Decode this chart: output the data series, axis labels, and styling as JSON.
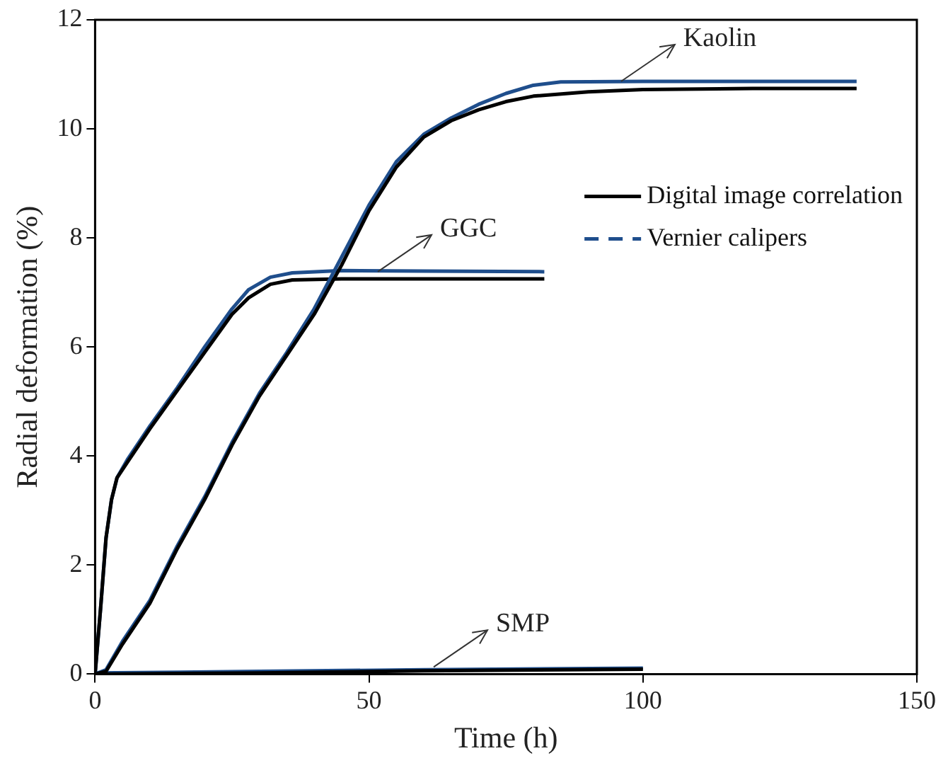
{
  "chart_data": {
    "type": "line",
    "xlabel": "Time (h)",
    "ylabel": "Radial deformation (%)",
    "xlim": [
      0,
      150
    ],
    "xticks": [
      0,
      50,
      100,
      150
    ],
    "ylim": [
      0,
      12
    ],
    "yticks": [
      0,
      2,
      4,
      6,
      8,
      10,
      12
    ],
    "legend": "right",
    "series": [
      {
        "name": "Digital image correlation",
        "color": "#000000",
        "x": [
          0,
          2,
          5,
          10,
          15,
          20,
          25,
          30,
          35,
          40,
          45,
          50,
          55,
          60,
          65,
          70,
          75,
          80,
          90,
          100,
          120,
          139
        ],
        "values": [
          0,
          0.05,
          0.55,
          1.3,
          2.3,
          3.2,
          4.2,
          5.1,
          5.85,
          6.6,
          7.5,
          8.5,
          9.3,
          9.85,
          10.15,
          10.35,
          10.5,
          10.6,
          10.68,
          10.72,
          10.74,
          10.74
        ]
      },
      {
        "name": "Vernier calipers",
        "color": "#1f4e8c",
        "x": [
          0,
          2,
          5,
          10,
          15,
          20,
          25,
          30,
          35,
          40,
          45,
          50,
          55,
          60,
          65,
          70,
          75,
          80,
          85,
          100,
          139
        ],
        "values": [
          0,
          0.08,
          0.6,
          1.35,
          2.35,
          3.25,
          4.25,
          5.15,
          5.9,
          6.7,
          7.65,
          8.6,
          9.4,
          9.9,
          10.2,
          10.45,
          10.65,
          10.8,
          10.86,
          10.87,
          10.87
        ]
      },
      {
        "color": "#000000",
        "x": [
          0,
          1,
          2,
          3,
          4,
          6,
          10,
          15,
          20,
          25,
          28,
          32,
          36,
          45,
          60,
          82
        ],
        "values": [
          0,
          1.2,
          2.5,
          3.2,
          3.6,
          3.9,
          4.5,
          5.2,
          5.9,
          6.6,
          6.9,
          7.15,
          7.23,
          7.25,
          7.25,
          7.25
        ]
      },
      {
        "color": "#1f4e8c",
        "x": [
          0,
          1,
          2,
          3,
          4,
          6,
          10,
          15,
          20,
          25,
          28,
          32,
          36,
          45,
          60,
          82
        ],
        "values": [
          0,
          1.2,
          2.5,
          3.2,
          3.6,
          3.95,
          4.55,
          5.25,
          6.0,
          6.7,
          7.05,
          7.28,
          7.36,
          7.4,
          7.39,
          7.38
        ]
      },
      {
        "color": "#000000",
        "x": [
          0,
          30,
          60,
          100
        ],
        "values": [
          0,
          0.02,
          0.06,
          0.09
        ]
      },
      {
        "color": "#1f4e8c",
        "x": [
          0,
          30,
          60,
          100
        ],
        "values": [
          0.02,
          0.05,
          0.08,
          0.11
        ]
      }
    ],
    "annotations": [
      {
        "text": "Kaolin",
        "x": 96,
        "y": 10.87
      },
      {
        "text": "GGC",
        "x": 51.6,
        "y": 7.38
      },
      {
        "text": "SMP",
        "x": 61.8,
        "y": 0.13
      }
    ]
  }
}
